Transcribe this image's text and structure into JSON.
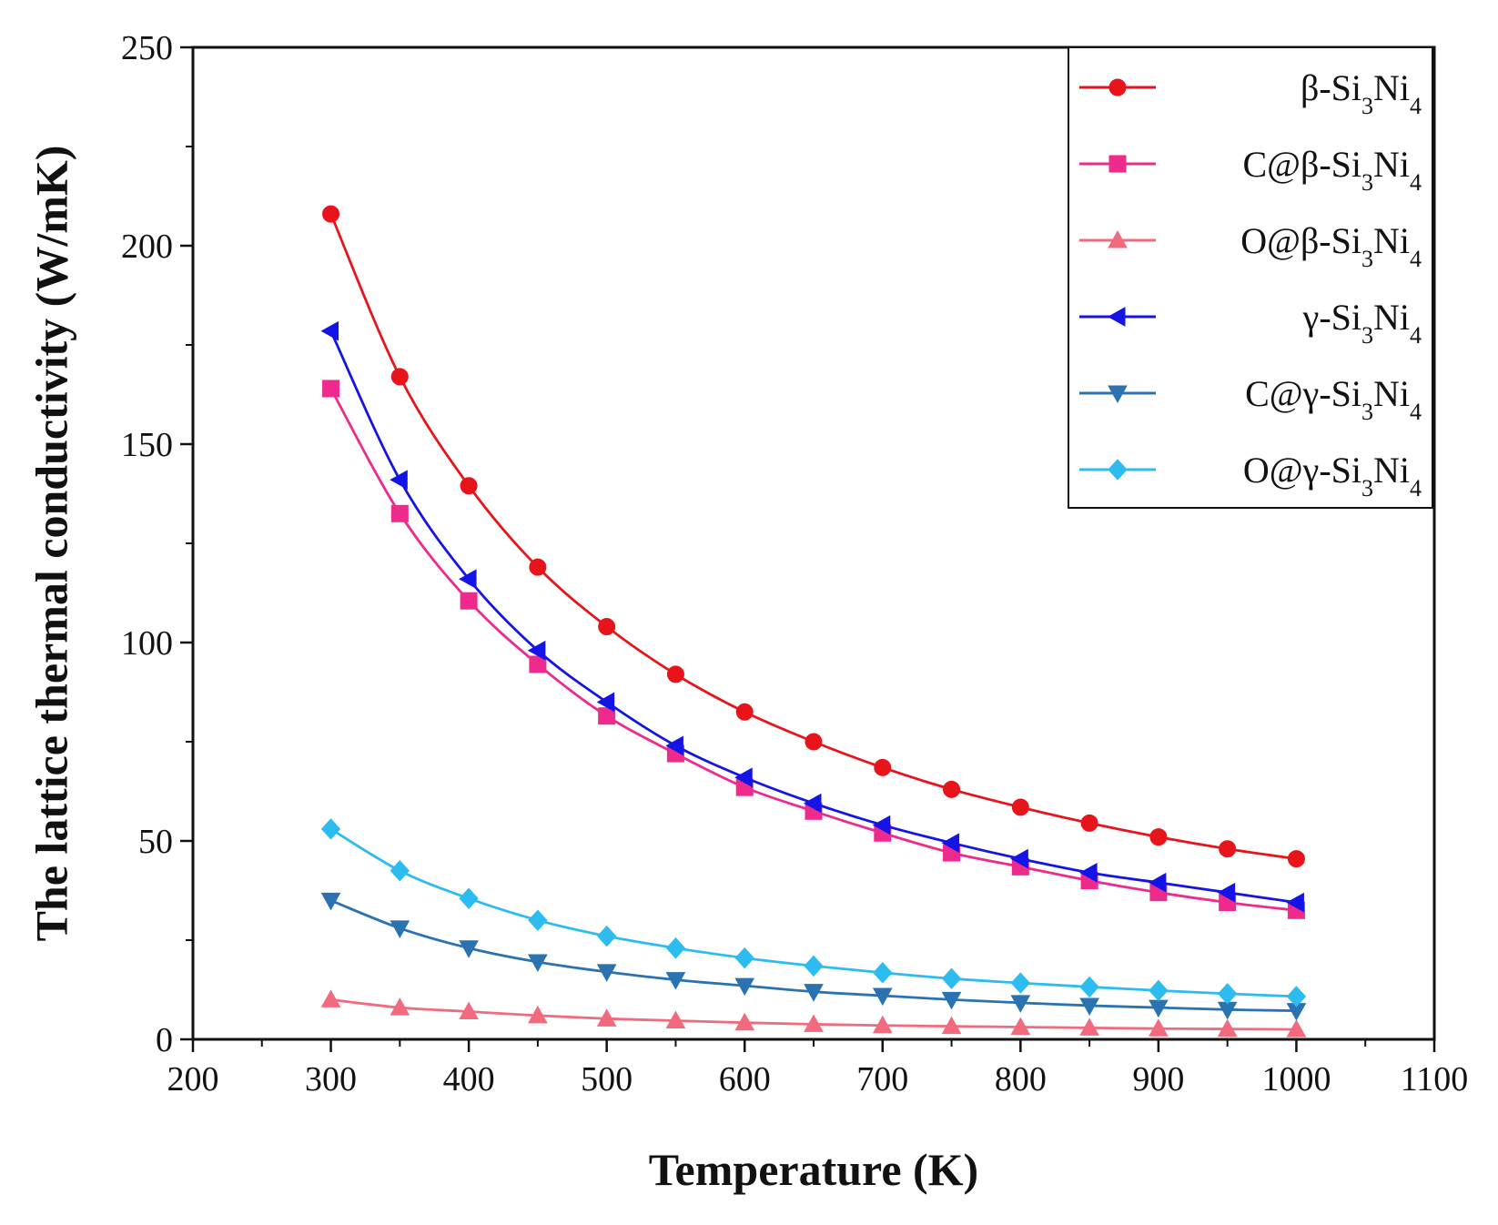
{
  "chart_data": {
    "type": "line",
    "title": "",
    "xlabel": "Temperature (K)",
    "ylabel": "The lattice thermal conductivity (W/mK)",
    "xlim": [
      200,
      1100
    ],
    "ylim": [
      0,
      250
    ],
    "xticks": [
      200,
      300,
      400,
      500,
      600,
      700,
      800,
      900,
      1000,
      1100
    ],
    "yticks": [
      0,
      50,
      100,
      150,
      200,
      250
    ],
    "grid": false,
    "legend_position": "top-right",
    "x": [
      300,
      350,
      400,
      450,
      500,
      550,
      600,
      650,
      700,
      750,
      800,
      850,
      900,
      950,
      1000
    ],
    "series": [
      {
        "name": "β-Si3Ni4",
        "label_parts": [
          "β-Si",
          "3",
          "Ni",
          "4"
        ],
        "marker": "circle",
        "color": "#e8141c",
        "values": [
          208,
          167,
          139.5,
          119,
          104,
          92,
          82.5,
          75,
          68.5,
          63,
          58.5,
          54.5,
          51,
          48,
          45.5
        ]
      },
      {
        "name": "C@β-Si3Ni4",
        "label_parts": [
          "C@β-Si",
          "3",
          "Ni",
          "4"
        ],
        "marker": "square",
        "color": "#ee2a8c",
        "values": [
          164,
          132.5,
          110.5,
          94.5,
          81.5,
          72,
          63.5,
          57.5,
          52,
          47,
          43.5,
          40,
          37,
          34.5,
          32.5
        ]
      },
      {
        "name": "O@β-Si3Ni4",
        "label_parts": [
          "O@β-Si",
          "3",
          "Ni",
          "4"
        ],
        "marker": "triangle-up",
        "color": "#f26a7e",
        "values": [
          10,
          8,
          7,
          6,
          5.2,
          4.7,
          4.2,
          3.8,
          3.5,
          3.3,
          3.1,
          2.9,
          2.7,
          2.6,
          2.5
        ]
      },
      {
        "name": "γ-Si3Ni4",
        "label_parts": [
          "γ-Si",
          "3",
          "Ni",
          "4"
        ],
        "marker": "triangle-left",
        "color": "#1414e6",
        "values": [
          178.5,
          141,
          116,
          98,
          85,
          74,
          66,
          59.5,
          54,
          49.5,
          45.5,
          42,
          39.5,
          37,
          34.5
        ]
      },
      {
        "name": "C@γ-Si3Ni4",
        "label_parts": [
          "C@γ-Si",
          "3",
          "Ni",
          "4"
        ],
        "marker": "triangle-down",
        "color": "#2a72b0",
        "values": [
          35,
          28,
          23,
          19.5,
          17,
          15,
          13.5,
          12,
          11,
          10,
          9.2,
          8.5,
          8,
          7.5,
          7.2
        ]
      },
      {
        "name": "O@γ-Si3Ni4",
        "label_parts": [
          "O@γ-Si",
          "3",
          "Ni",
          "4"
        ],
        "marker": "diamond",
        "color": "#2cbcf0",
        "values": [
          53,
          42.5,
          35.5,
          30,
          26,
          23,
          20.5,
          18.5,
          16.8,
          15.3,
          14.2,
          13.2,
          12.3,
          11.5,
          10.8
        ]
      }
    ]
  }
}
